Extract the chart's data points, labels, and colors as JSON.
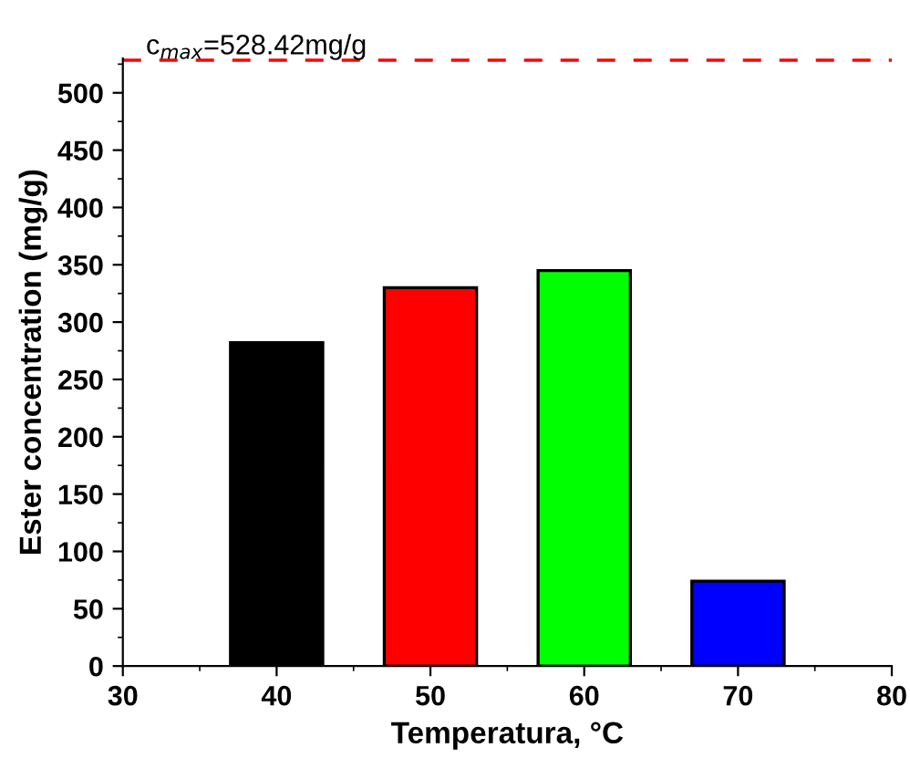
{
  "chart_data": {
    "type": "bar",
    "xlabel": "Temperatura, °C",
    "ylabel": "Ester concentration (mg/g)",
    "x": [
      40,
      50,
      60,
      70
    ],
    "values": [
      282,
      330,
      345,
      74
    ],
    "colors": [
      "#000000",
      "#ff0000",
      "#00ff00",
      "#0000ff"
    ],
    "xlim": [
      30,
      80
    ],
    "xticks": [
      30,
      40,
      50,
      60,
      70,
      80
    ],
    "ylim": [
      0,
      530
    ],
    "yticks": [
      0,
      50,
      100,
      150,
      200,
      250,
      300,
      350,
      400,
      450,
      500
    ],
    "ref_lines": [
      {
        "axis": "y",
        "value": 528.42,
        "label": "c$_{max}$=528.42mg/g",
        "color": "#ff0000",
        "line_style": "dashed"
      }
    ],
    "grid": false,
    "legend": false
  }
}
